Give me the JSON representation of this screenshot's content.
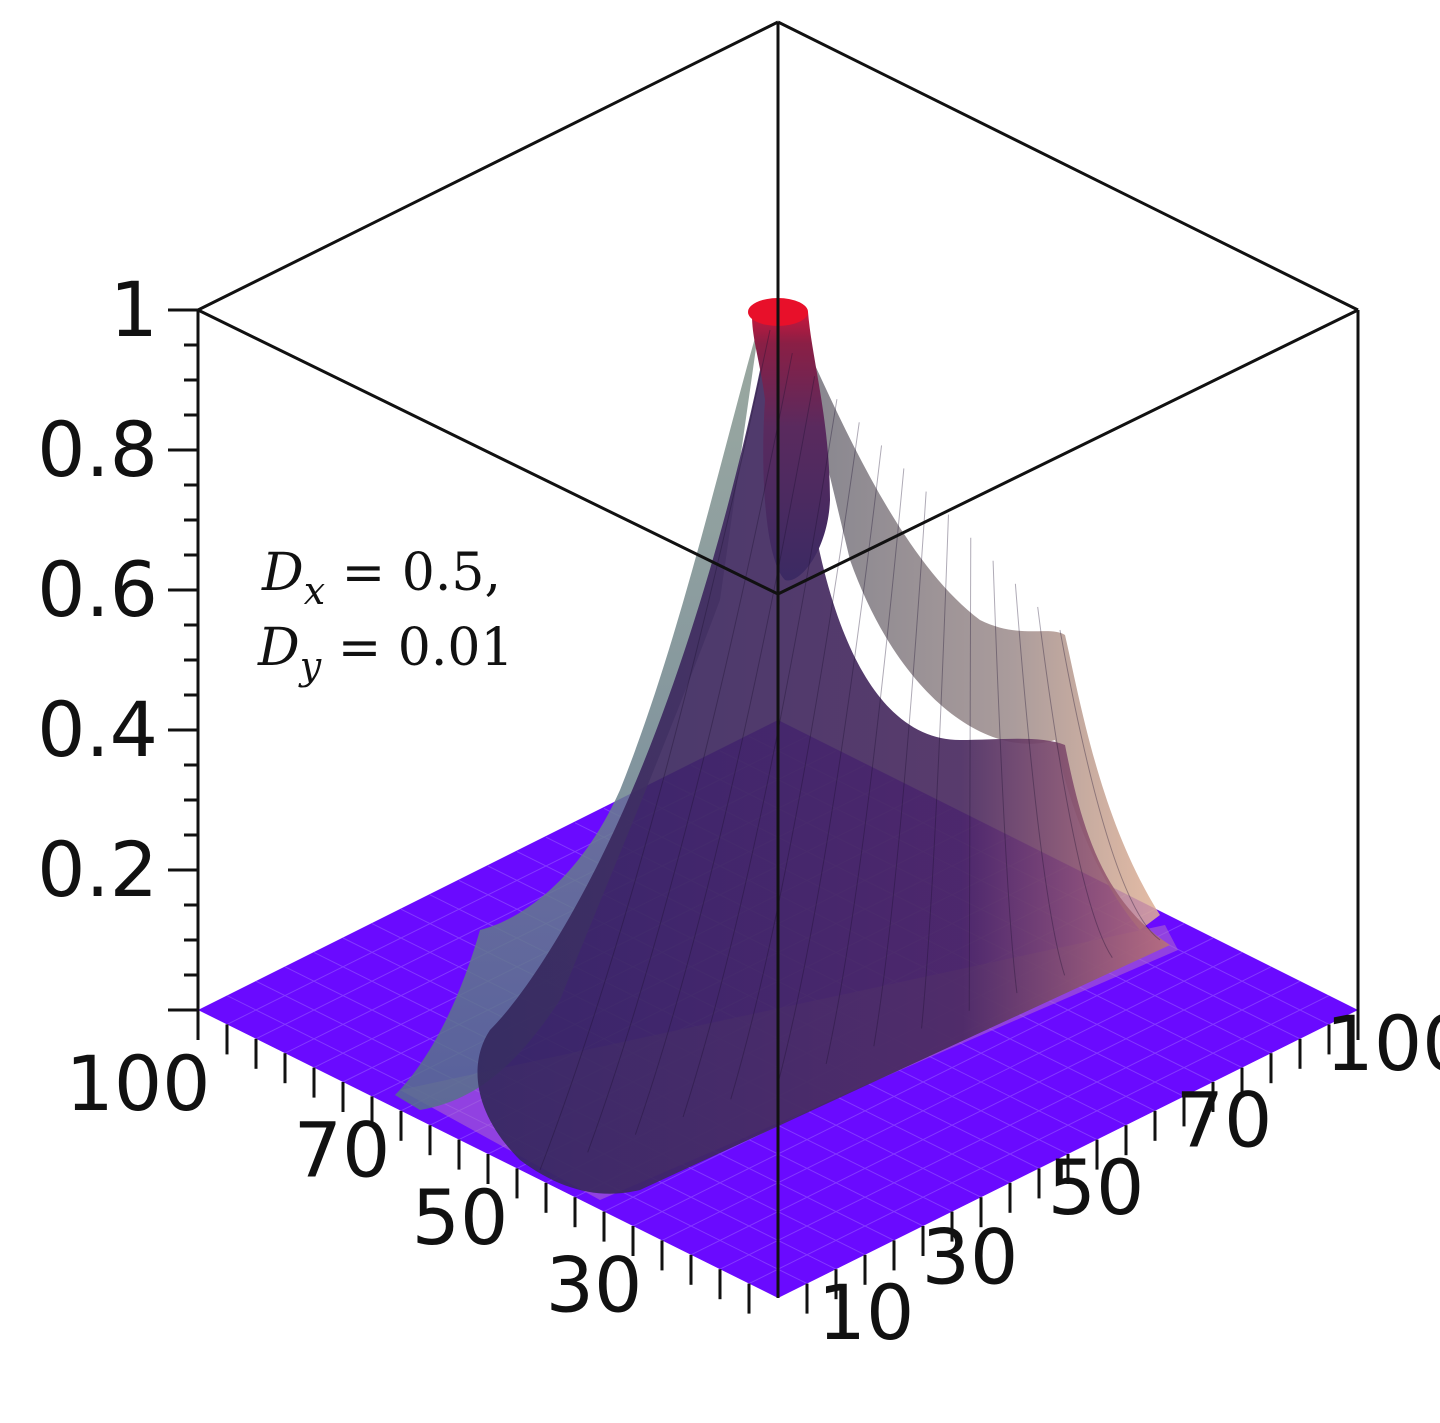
{
  "chart_data": {
    "type": "surface",
    "title": "",
    "annotation": {
      "line1": "Dx = 0.5,",
      "line2": "Dy = 0.01",
      "line1_base": "D",
      "line1_sub": "x",
      "line1_rest": " = 0.5,",
      "line2_base": "D",
      "line2_sub": "y",
      "line2_rest": " = 0.01"
    },
    "z_ticks": [
      {
        "value": 0.2,
        "label": "0.2"
      },
      {
        "value": 0.4,
        "label": "0.4"
      },
      {
        "value": 0.6,
        "label": "0.6"
      },
      {
        "value": 0.8,
        "label": "0.8"
      },
      {
        "value": 1.0,
        "label": "1"
      }
    ],
    "zlim": [
      0,
      1
    ],
    "x_ticks": [
      {
        "value": 30,
        "label": "30"
      },
      {
        "value": 50,
        "label": "50"
      },
      {
        "value": 70,
        "label": "70"
      },
      {
        "value": 100,
        "label": "100"
      }
    ],
    "y_ticks": [
      {
        "value": 10,
        "label": "10"
      },
      {
        "value": 30,
        "label": "30"
      },
      {
        "value": 50,
        "label": "50"
      },
      {
        "value": 70,
        "label": "70"
      },
      {
        "value": 100,
        "label": "100"
      }
    ],
    "xlim": [
      0,
      100
    ],
    "ylim": [
      0,
      100
    ],
    "peak": {
      "value": 1.0
    },
    "ridge_shoulder": {
      "value": 0.5
    },
    "colormap": [
      "#6a00ff",
      "#3a2a66",
      "#7a2a5a",
      "#c8868a",
      "#e8102a"
    ],
    "grid": true
  }
}
